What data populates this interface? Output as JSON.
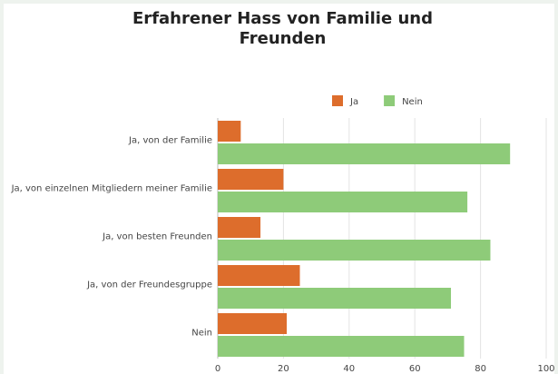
{
  "chart_data": {
    "type": "bar",
    "orientation": "horizontal",
    "title": "Erfahrener Hass von Familie und Freunden",
    "categories": [
      "Ja, von der Familie",
      "Ja, von einzelnen Mitgliedern meiner Familie",
      "Ja, von besten Freunden",
      "Ja, von der Freundesgruppe",
      "Nein"
    ],
    "series": [
      {
        "name": "Ja",
        "color": "#dd6d2c",
        "values": [
          7,
          20,
          13,
          25,
          21
        ]
      },
      {
        "name": "Nein",
        "color": "#8ecb79",
        "values": [
          89,
          76,
          83,
          71,
          75
        ]
      }
    ],
    "xlim": [
      0,
      100
    ],
    "xticks": [
      0,
      20,
      40,
      60,
      80,
      100
    ],
    "grid": true,
    "legend": "top"
  }
}
